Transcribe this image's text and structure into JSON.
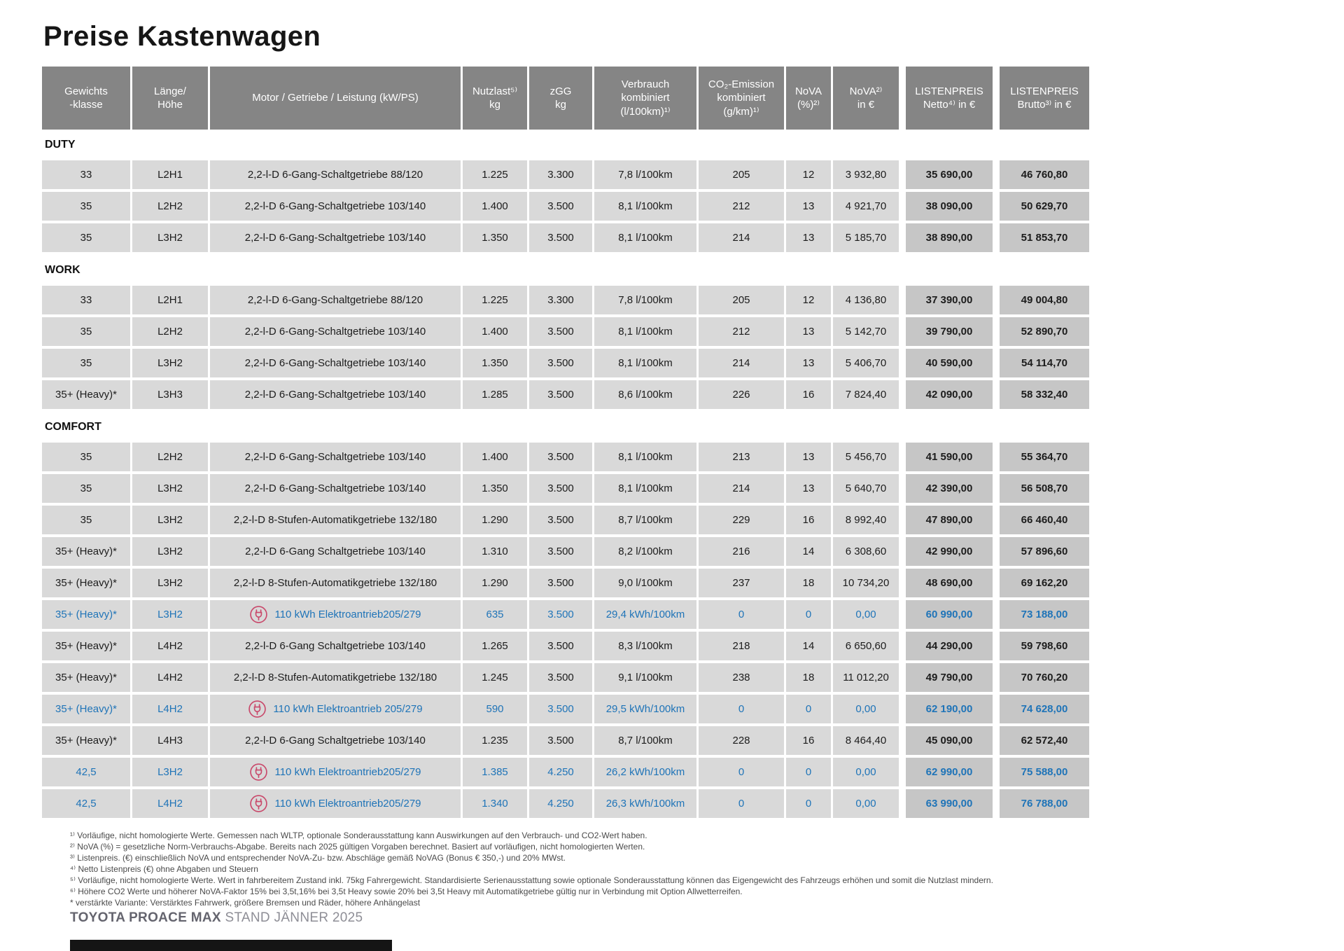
{
  "page": {
    "title": "Preise Kastenwagen"
  },
  "colors": {
    "header_gray": "#858585",
    "cell_gray": "#d9d9d9",
    "price_gray": "#c6c6c6",
    "electric_blue": "#1f74b8",
    "plug_pink": "#c9496b"
  },
  "table": {
    "columns": [
      {
        "id": "gewichtsklasse",
        "label": "Gewichts\n-klasse"
      },
      {
        "id": "laenge-hoehe",
        "label": "Länge/\nHöhe"
      },
      {
        "id": "motor",
        "label": "Motor / Getriebe / Leistung (kW/PS)"
      },
      {
        "id": "nutzlast",
        "label": "Nutzlast⁵⁾\nkg"
      },
      {
        "id": "zgg",
        "label": "zGG\nkg"
      },
      {
        "id": "verbrauch",
        "label": "Verbrauch\nkombiniert\n(l/100km)¹⁾"
      },
      {
        "id": "co2",
        "label": "CO₂-Emission\nkombiniert\n(g/km)¹⁾"
      },
      {
        "id": "nova-pct",
        "label": "NoVA\n(%)²⁾"
      },
      {
        "id": "nova-eur",
        "label": "NoVA²⁾\nin €"
      },
      {
        "id": "listenpreis-netto",
        "label": "LISTENPREIS\nNetto⁴⁾ in €"
      },
      {
        "id": "listenpreis-brutto",
        "label": "LISTENPREIS\nBrutto³⁾ in €"
      }
    ],
    "sections": [
      {
        "name": "DUTY",
        "rows": [
          {
            "electric": false,
            "gewicht": "33",
            "laenge": "L2H1",
            "motor": "2,2-l-D 6-Gang-Schaltgetriebe 88/120",
            "nutzlast": "1.225",
            "zgg": "3.300",
            "verbrauch": "7,8 l/100km",
            "co2": "205",
            "nova_pct": "12",
            "nova_eur": "3 932,80",
            "netto": "35 690,00",
            "brutto": "46 760,80"
          },
          {
            "electric": false,
            "gewicht": "35",
            "laenge": "L2H2",
            "motor": "2,2-l-D 6-Gang-Schaltgetriebe 103/140",
            "nutzlast": "1.400",
            "zgg": "3.500",
            "verbrauch": "8,1 l/100km",
            "co2": "212",
            "nova_pct": "13",
            "nova_eur": "4 921,70",
            "netto": "38 090,00",
            "brutto": "50 629,70"
          },
          {
            "electric": false,
            "gewicht": "35",
            "laenge": "L3H2",
            "motor": "2,2-l-D 6-Gang-Schaltgetriebe 103/140",
            "nutzlast": "1.350",
            "zgg": "3.500",
            "verbrauch": "8,1 l/100km",
            "co2": "214",
            "nova_pct": "13",
            "nova_eur": "5 185,70",
            "netto": "38 890,00",
            "brutto": "51 853,70"
          }
        ]
      },
      {
        "name": "WORK",
        "rows": [
          {
            "electric": false,
            "gewicht": "33",
            "laenge": "L2H1",
            "motor": "2,2-l-D 6-Gang-Schaltgetriebe 88/120",
            "nutzlast": "1.225",
            "zgg": "3.300",
            "verbrauch": "7,8 l/100km",
            "co2": "205",
            "nova_pct": "12",
            "nova_eur": "4 136,80",
            "netto": "37 390,00",
            "brutto": "49 004,80"
          },
          {
            "electric": false,
            "gewicht": "35",
            "laenge": "L2H2",
            "motor": "2,2-l-D 6-Gang-Schaltgetriebe 103/140",
            "nutzlast": "1.400",
            "zgg": "3.500",
            "verbrauch": "8,1 l/100km",
            "co2": "212",
            "nova_pct": "13",
            "nova_eur": "5 142,70",
            "netto": "39 790,00",
            "brutto": "52 890,70"
          },
          {
            "electric": false,
            "gewicht": "35",
            "laenge": "L3H2",
            "motor": "2,2-l-D 6-Gang-Schaltgetriebe 103/140",
            "nutzlast": "1.350",
            "zgg": "3.500",
            "verbrauch": "8,1 l/100km",
            "co2": "214",
            "nova_pct": "13",
            "nova_eur": "5 406,70",
            "netto": "40 590,00",
            "brutto": "54 114,70"
          },
          {
            "electric": false,
            "gewicht": "35+ (Heavy)*",
            "laenge": "L3H3",
            "motor": "2,2-l-D 6-Gang-Schaltgetriebe 103/140",
            "nutzlast": "1.285",
            "zgg": "3.500",
            "verbrauch": "8,6 l/100km",
            "co2": "226",
            "nova_pct": "16",
            "nova_eur": "7 824,40",
            "netto": "42 090,00",
            "brutto": "58 332,40"
          }
        ]
      },
      {
        "name": "COMFORT",
        "rows": [
          {
            "electric": false,
            "gewicht": "35",
            "laenge": "L2H2",
            "motor": "2,2-l-D 6-Gang-Schaltgetriebe 103/140",
            "nutzlast": "1.400",
            "zgg": "3.500",
            "verbrauch": "8,1 l/100km",
            "co2": "213",
            "nova_pct": "13",
            "nova_eur": "5 456,70",
            "netto": "41 590,00",
            "brutto": "55 364,70"
          },
          {
            "electric": false,
            "gewicht": "35",
            "laenge": "L3H2",
            "motor": "2,2-l-D 6-Gang-Schaltgetriebe 103/140",
            "nutzlast": "1.350",
            "zgg": "3.500",
            "verbrauch": "8,1 l/100km",
            "co2": "214",
            "nova_pct": "13",
            "nova_eur": "5 640,70",
            "netto": "42 390,00",
            "brutto": "56 508,70"
          },
          {
            "electric": false,
            "gewicht": "35",
            "laenge": "L3H2",
            "motor": "2,2-l-D 8-Stufen-Automatikgetriebe 132/180",
            "nutzlast": "1.290",
            "zgg": "3.500",
            "verbrauch": "8,7 l/100km",
            "co2": "229",
            "nova_pct": "16",
            "nova_eur": "8 992,40",
            "netto": "47 890,00",
            "brutto": "66 460,40"
          },
          {
            "electric": false,
            "gewicht": "35+ (Heavy)*",
            "laenge": "L3H2",
            "motor": "2,2-l-D 6-Gang Schaltgetriebe 103/140",
            "nutzlast": "1.310",
            "zgg": "3.500",
            "verbrauch": "8,2 l/100km",
            "co2": "216",
            "nova_pct": "14",
            "nova_eur": "6 308,60",
            "netto": "42 990,00",
            "brutto": "57 896,60"
          },
          {
            "electric": false,
            "gewicht": "35+ (Heavy)*",
            "laenge": "L3H2",
            "motor": "2,2-l-D 8-Stufen-Automatikgetriebe 132/180",
            "nutzlast": "1.290",
            "zgg": "3.500",
            "verbrauch": "9,0 l/100km",
            "co2": "237",
            "nova_pct": "18",
            "nova_eur": "10 734,20",
            "netto": "48 690,00",
            "brutto": "69 162,20"
          },
          {
            "electric": true,
            "gewicht": "35+ (Heavy)*",
            "laenge": "L3H2",
            "motor": "110 kWh Elektroantrieb205/279",
            "nutzlast": "635",
            "zgg": "3.500",
            "verbrauch": "29,4 kWh/100km",
            "co2": "0",
            "nova_pct": "0",
            "nova_eur": "0,00",
            "netto": "60 990,00",
            "brutto": "73 188,00"
          },
          {
            "electric": false,
            "gewicht": "35+ (Heavy)*",
            "laenge": "L4H2",
            "motor": "2,2-l-D 6-Gang Schaltgetriebe 103/140",
            "nutzlast": "1.265",
            "zgg": "3.500",
            "verbrauch": "8,3 l/100km",
            "co2": "218",
            "nova_pct": "14",
            "nova_eur": "6 650,60",
            "netto": "44 290,00",
            "brutto": "59 798,60"
          },
          {
            "electric": false,
            "gewicht": "35+ (Heavy)*",
            "laenge": "L4H2",
            "motor": "2,2-l-D 8-Stufen-Automatikgetriebe 132/180",
            "nutzlast": "1.245",
            "zgg": "3.500",
            "verbrauch": "9,1 l/100km",
            "co2": "238",
            "nova_pct": "18",
            "nova_eur": "11 012,20",
            "netto": "49 790,00",
            "brutto": "70 760,20"
          },
          {
            "electric": true,
            "gewicht": "35+ (Heavy)*",
            "laenge": "L4H2",
            "motor": "110 kWh Elektroantrieb 205/279",
            "nutzlast": "590",
            "zgg": "3.500",
            "verbrauch": "29,5 kWh/100km",
            "co2": "0",
            "nova_pct": "0",
            "nova_eur": "0,00",
            "netto": "62 190,00",
            "brutto": "74 628,00"
          },
          {
            "electric": false,
            "gewicht": "35+ (Heavy)*",
            "laenge": "L4H3",
            "motor": "2,2-l-D 6-Gang Schaltgetriebe 103/140",
            "nutzlast": "1.235",
            "zgg": "3.500",
            "verbrauch": "8,7 l/100km",
            "co2": "228",
            "nova_pct": "16",
            "nova_eur": "8 464,40",
            "netto": "45 090,00",
            "brutto": "62 572,40"
          },
          {
            "electric": true,
            "gewicht": "42,5",
            "laenge": "L3H2",
            "motor": "110 kWh Elektroantrieb205/279",
            "nutzlast": "1.385",
            "zgg": "4.250",
            "verbrauch": "26,2 kWh/100km",
            "co2": "0",
            "nova_pct": "0",
            "nova_eur": "0,00",
            "netto": "62 990,00",
            "brutto": "75 588,00"
          },
          {
            "electric": true,
            "gewicht": "42,5",
            "laenge": "L4H2",
            "motor": "110 kWh Elektroantrieb205/279",
            "nutzlast": "1.340",
            "zgg": "4.250",
            "verbrauch": "26,3 kWh/100km",
            "co2": "0",
            "nova_pct": "0",
            "nova_eur": "0,00",
            "netto": "63 990,00",
            "brutto": "76 788,00"
          }
        ]
      }
    ]
  },
  "footnotes": [
    {
      "marker": "¹⁾",
      "text": "Vorläufige, nicht homologierte Werte. Gemessen nach WLTP, optionale Sonderausstattung kann Auswirkungen auf den Verbrauch- und CO2-Wert haben."
    },
    {
      "marker": "²⁾",
      "text": "NoVA (%) = gesetzliche Norm-Verbrauchs-Abgabe. Bereits nach 2025 gültigen Vorgaben berechnet. Basiert auf vorläufigen, nicht homologierten Werten."
    },
    {
      "marker": "³⁾",
      "text": "Listenpreis. (€) einschließlich NoVA und entsprechender NoVA-Zu- bzw. Abschläge gemäß NoVAG (Bonus € 350,-) und 20% MWst."
    },
    {
      "marker": "⁴⁾",
      "text": "Netto Listenpreis (€) ohne Abgaben und Steuern"
    },
    {
      "marker": "⁵⁾",
      "text": "Vorläufige, nicht homologierte Werte. Wert in fahrbereitem Zustand inkl. 75kg Fahrergewicht. Standardisierte Serienausstattung sowie optionale Sonderausstattung können das Eigengewicht des Fahrzeugs erhöhen und somit die Nutzlast mindern."
    },
    {
      "marker": "⁶⁾",
      "text": "Höhere CO2 Werte und höherer NoVA-Faktor 15% bei 3,5t,16% bei 3,5t Heavy sowie 20% bei 3,5t Heavy mit Automatikgetriebe gültig nur in Verbindung mit Option Allwetterreifen."
    },
    {
      "marker": "*",
      "text": "verstärkte Variante: Verstärktes Fahrwerk, größere Bremsen und Räder, höhere Anhängelast"
    }
  ],
  "footer": {
    "brand": "TOYOTA PROACE MAX",
    "stand": "STAND JÄNNER 2025"
  }
}
